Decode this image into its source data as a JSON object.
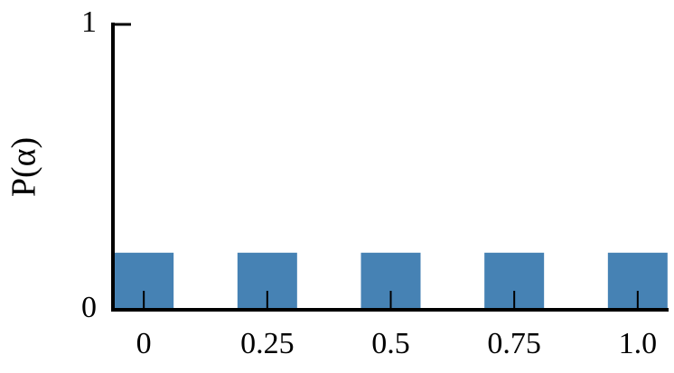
{
  "chart_data": {
    "type": "bar",
    "y_label": "P(α)",
    "x": [
      0,
      0.25,
      0.5,
      0.75,
      1
    ],
    "values": [
      0.2,
      0.2,
      0.2,
      0.2,
      0.2
    ],
    "color": "#4682b4",
    "xlim": [
      -0.0625,
      1.0625
    ],
    "xticks": [
      0,
      0.25,
      0.5,
      0.75,
      {
        "value": 1,
        "label": "1.0"
      }
    ],
    "ylim": [
      0,
      1
    ],
    "yticks": [
      0,
      1
    ]
  }
}
